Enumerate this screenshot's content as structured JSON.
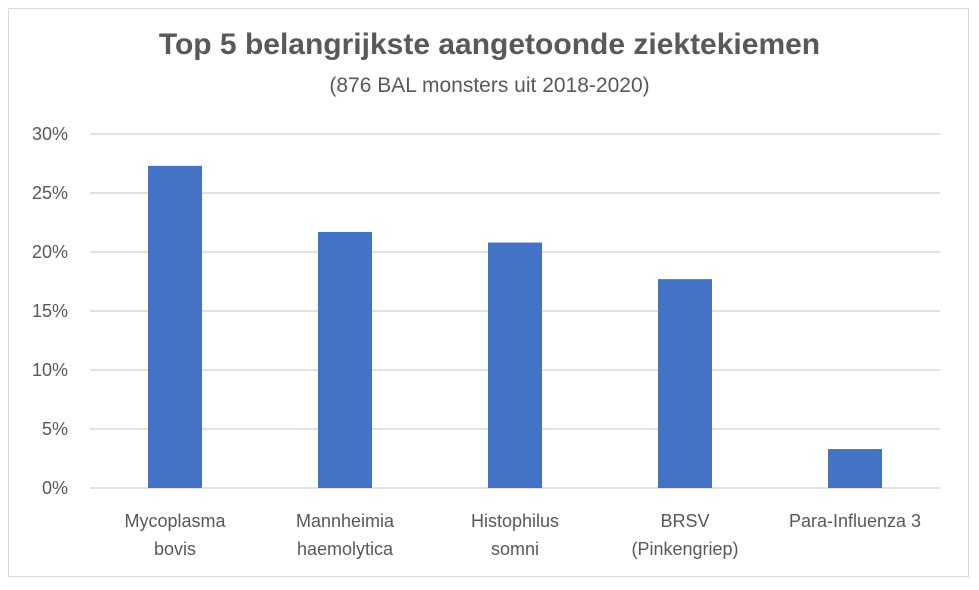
{
  "chart_data": {
    "type": "bar",
    "title": "Top 5 belangrijkste aangetoonde ziektekiemen",
    "subtitle": "(876 BAL monsters uit 2018-2020)",
    "categories": [
      [
        "Mycoplasma",
        "bovis"
      ],
      [
        "Mannheimia",
        "haemolytica"
      ],
      [
        "Histophilus",
        "somni"
      ],
      [
        "BRSV",
        "(Pinkengriep)"
      ],
      [
        "Para-Influenza 3"
      ]
    ],
    "values": [
      27.3,
      21.7,
      20.8,
      17.7,
      3.3
    ],
    "ylim": [
      0,
      30
    ],
    "yticks": [
      0,
      5,
      10,
      15,
      20,
      25,
      30
    ],
    "ytick_labels": [
      "0%",
      "5%",
      "10%",
      "15%",
      "20%",
      "25%",
      "30%"
    ],
    "grid": true,
    "legend": "none",
    "bar_color": "#4472c4",
    "grid_color": "#d9d9d9",
    "text_color": "#595959"
  }
}
